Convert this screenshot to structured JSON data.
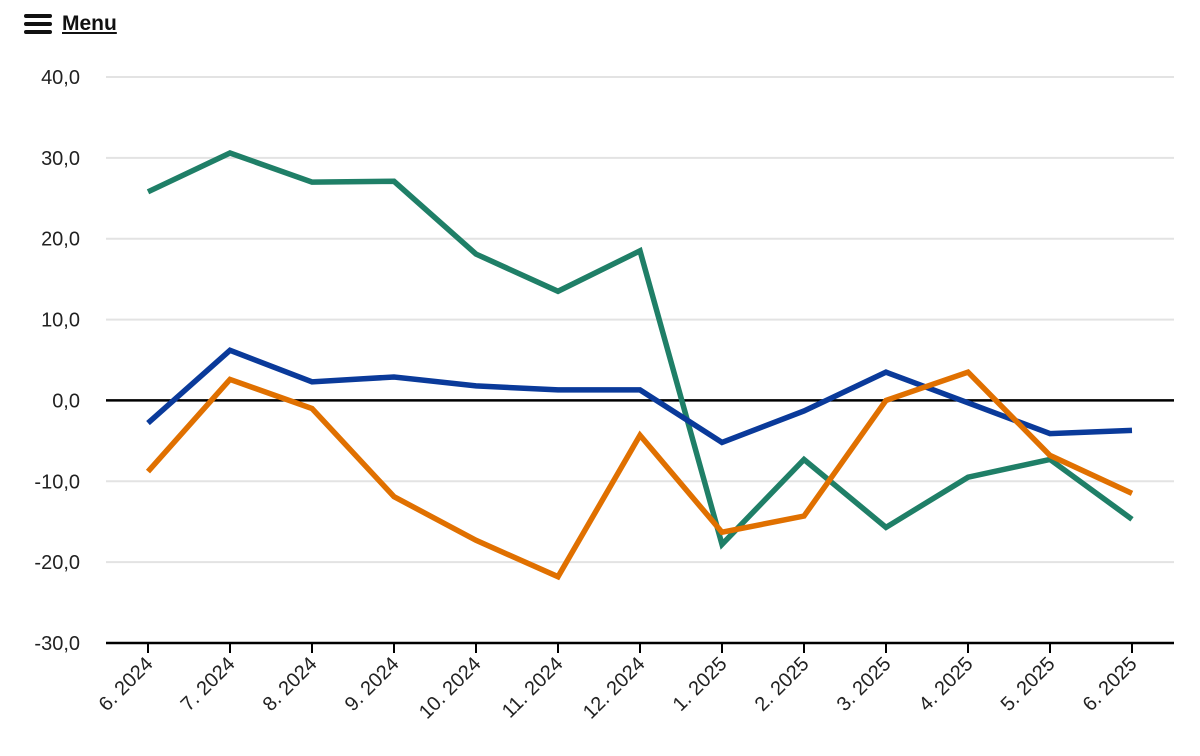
{
  "menu": {
    "label": "Menu",
    "icon": "hamburger-menu-icon"
  },
  "chart_data": {
    "type": "line",
    "title": "",
    "xlabel": "",
    "ylabel": "",
    "categories": [
      "6. 2024",
      "7. 2024",
      "8. 2024",
      "9. 2024",
      "10. 2024",
      "11. 2024",
      "12. 2024",
      "1. 2025",
      "2. 2025",
      "3. 2025",
      "4. 2025",
      "5. 2025",
      "6. 2025"
    ],
    "ylim": [
      -30,
      40
    ],
    "yticks": [
      40,
      30,
      20,
      10,
      0,
      -10,
      -20,
      -30
    ],
    "ytick_labels": [
      "40,0",
      "30,0",
      "20,0",
      "10,0",
      "0,0",
      "-10,0",
      "-20,0",
      "-30,0"
    ],
    "grid": true,
    "legend": "none",
    "series": [
      {
        "color": "#1f7f67",
        "values": [
          25.8,
          30.6,
          27.0,
          27.1,
          18.1,
          13.5,
          18.5,
          -17.8,
          -7.3,
          -15.7,
          -9.5,
          -7.3,
          -14.7
        ]
      },
      {
        "color": "#0a3a9a",
        "values": [
          -2.8,
          6.2,
          2.3,
          2.9,
          1.8,
          1.3,
          1.3,
          -5.2,
          -1.3,
          3.5,
          -0.3,
          -4.1,
          -3.7
        ]
      },
      {
        "color": "#e07000",
        "values": [
          -8.8,
          2.6,
          -1.0,
          -11.9,
          -17.3,
          -21.8,
          -4.3,
          -16.3,
          -14.3,
          0.0,
          3.5,
          -6.8,
          -11.5
        ]
      }
    ]
  }
}
